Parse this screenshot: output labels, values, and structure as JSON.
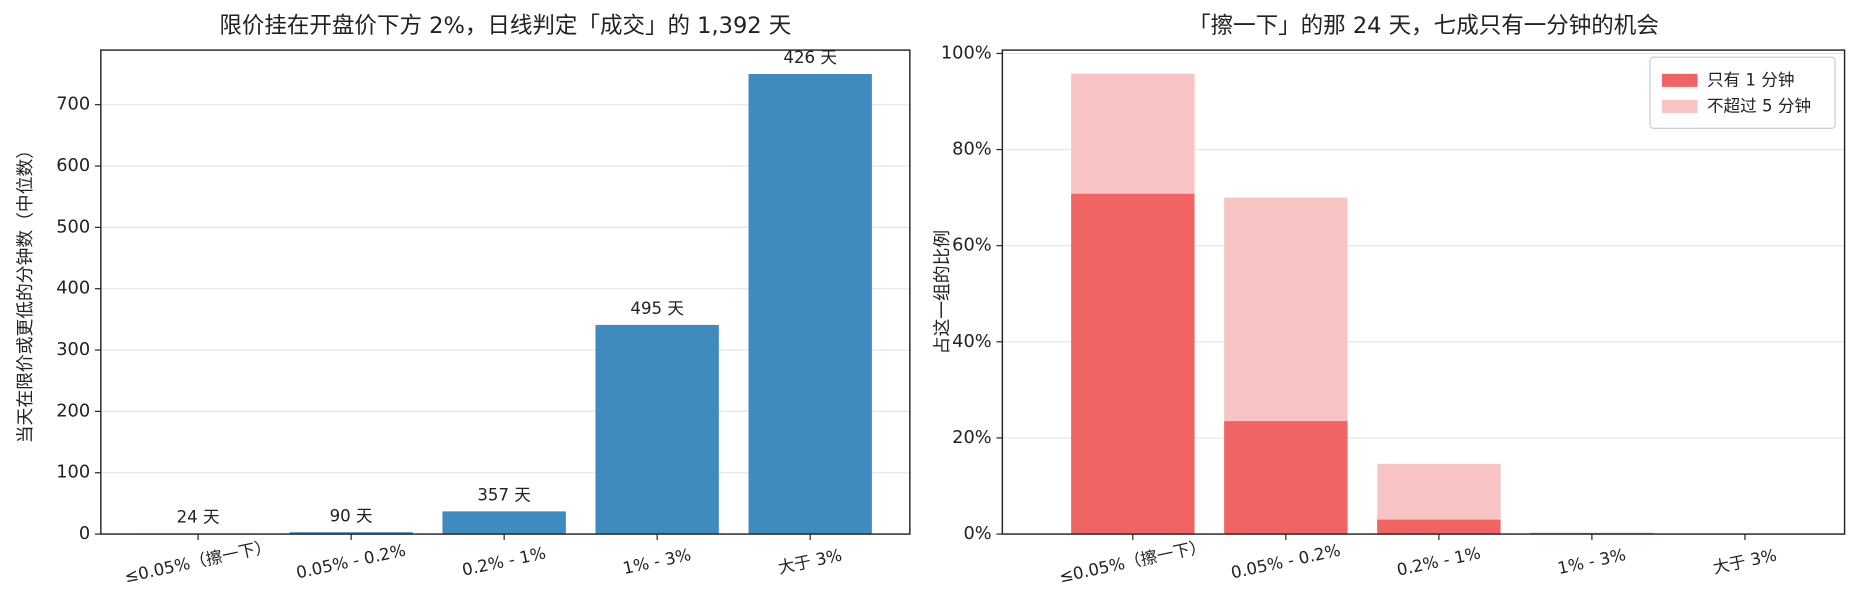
{
  "chart_data": [
    {
      "type": "bar",
      "title": "限价挂在开盘价下方 2%，日线判定「成交」的 1,392 天",
      "ylabel": "当天在限价或更低的分钟数（中位数）",
      "categories": [
        "≤0.05%（擦一下）",
        "0.05% - 0.2%",
        "0.2% - 1%",
        "1% - 3%",
        "大于 3%"
      ],
      "values": [
        1,
        3,
        37,
        341,
        750
      ],
      "annotations": [
        "24 天",
        "90 天",
        "357 天",
        "495 天",
        "426 天"
      ],
      "color": "#3f8abf",
      "ylim": [
        0,
        789
      ],
      "yticks": [
        0,
        100,
        200,
        300,
        400,
        500,
        600,
        700
      ],
      "grid": true
    },
    {
      "type": "bar",
      "bar_mode": "overlay",
      "title": "「擦一下」的那 24 天，七成只有一分钟的机会",
      "ylabel": "占这一组的比例",
      "categories": [
        "≤0.05%（擦一下）",
        "0.05% - 0.2%",
        "0.2% - 1%",
        "1% - 3%",
        "大于 3%"
      ],
      "series": [
        {
          "name": "只有 1 分钟",
          "color": "#f06464",
          "values": [
            70.8,
            23.5,
            3,
            0.2,
            0
          ]
        },
        {
          "name": "不超过 5 分钟",
          "color": "#f8c3c3",
          "values": [
            95.8,
            70,
            14.6,
            0.3,
            0
          ]
        }
      ],
      "ylim": [
        0,
        100.7
      ],
      "yticks": [
        {
          "value": 0,
          "label": "0%"
        },
        {
          "value": 20,
          "label": "20%"
        },
        {
          "value": 40,
          "label": "40%"
        },
        {
          "value": 60,
          "label": "60%"
        },
        {
          "value": 80,
          "label": "80%"
        },
        {
          "value": 100,
          "label": "100%"
        }
      ],
      "grid": true,
      "legend": "upper right"
    }
  ]
}
